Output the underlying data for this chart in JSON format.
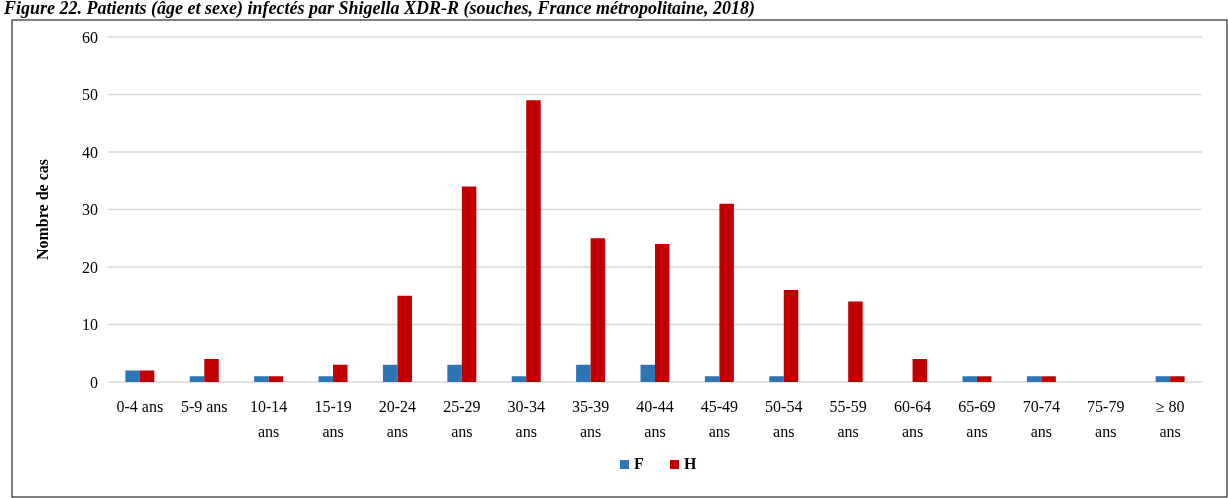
{
  "chart_data": {
    "type": "bar",
    "title": "Figure 22. Patients (âge et sexe) infectés par Shigella XDR-R (souches, France métropolitaine, 2018)",
    "ylabel": "Nombre de cas",
    "categories": [
      "0-4 ans",
      "5-9 ans",
      "10-14 ans",
      "15-19 ans",
      "20-24 ans",
      "25-29 ans",
      "30-34 ans",
      "35-39 ans",
      "40-44 ans",
      "45-49 ans",
      "50-54 ans",
      "55-59 ans",
      "60-64 ans",
      "65-69 ans",
      "70-74 ans",
      "75-79 ans",
      "≥ 80 ans"
    ],
    "series": [
      {
        "name": "F",
        "color": "#2e75b6",
        "values": [
          2,
          1,
          1,
          1,
          3,
          3,
          1,
          3,
          3,
          1,
          1,
          0,
          0,
          1,
          1,
          0,
          1
        ]
      },
      {
        "name": "H",
        "color": "#c00000",
        "values": [
          2,
          4,
          1,
          3,
          15,
          34,
          49,
          25,
          24,
          31,
          16,
          14,
          4,
          1,
          1,
          0,
          1
        ]
      }
    ],
    "ylim": [
      0,
      60
    ],
    "yticks": [
      0,
      10,
      20,
      30,
      40,
      50,
      60
    ],
    "grid": "y",
    "legend": "bottom"
  }
}
